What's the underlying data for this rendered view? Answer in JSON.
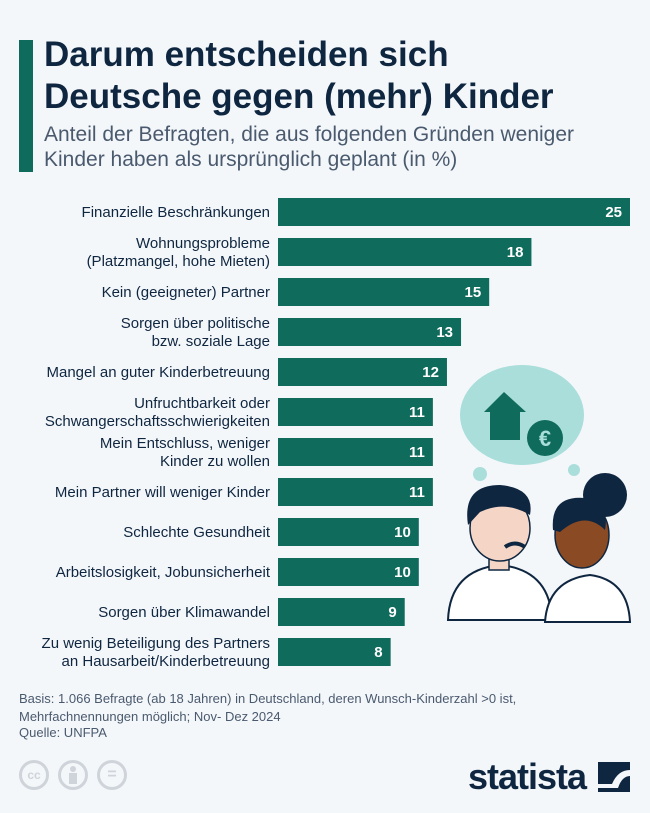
{
  "header": {
    "title_line1": "Darum entscheiden sich",
    "title_line2": "Deutsche gegen (mehr) Kinder",
    "subtitle_line1": "Anteil der Befragten, die aus folgenden Gründen weniger",
    "subtitle_line2": "Kinder haben als ursprünglich geplant (in %)"
  },
  "chart_data": {
    "type": "bar",
    "orientation": "horizontal",
    "categories": [
      [
        "Finanzielle Beschränkungen"
      ],
      [
        "Wohnungsprobleme",
        "(Platzmangel, hohe Mieten)"
      ],
      [
        "Kein (geeigneter) Partner"
      ],
      [
        "Sorgen über politische",
        "bzw. soziale Lage"
      ],
      [
        "Mangel an guter Kinderbetreuung"
      ],
      [
        "Unfruchtbarkeit oder",
        "Schwangerschaftsschwierigkeiten"
      ],
      [
        "Mein Entschluss, weniger",
        "Kinder zu wollen"
      ],
      [
        "Mein Partner will weniger Kinder"
      ],
      [
        "Schlechte Gesundheit"
      ],
      [
        "Arbeitslosigkeit, Jobunsicherheit"
      ],
      [
        "Sorgen über Klimawandel"
      ],
      [
        "Zu wenig Beteiligung des Partners",
        "an Hausarbeit/Kinderbetreuung"
      ]
    ],
    "values": [
      25,
      18,
      15,
      13,
      12,
      11,
      11,
      11,
      10,
      10,
      9,
      8
    ],
    "xlim": [
      0,
      25
    ],
    "grid": false,
    "bar_color": "#0f6b5c"
  },
  "footer": {
    "basis_line1": "Basis: 1.066 Befragte (ab 18 Jahren) in Deutschland, deren Wunsch-Kinderzahl >0 ist,",
    "basis_line2": "Mehrfachnennungen möglich; Nov- Dez 2024",
    "source": "Quelle: UNFPA",
    "cc": "cc",
    "equals": "=",
    "logo": "statista"
  }
}
